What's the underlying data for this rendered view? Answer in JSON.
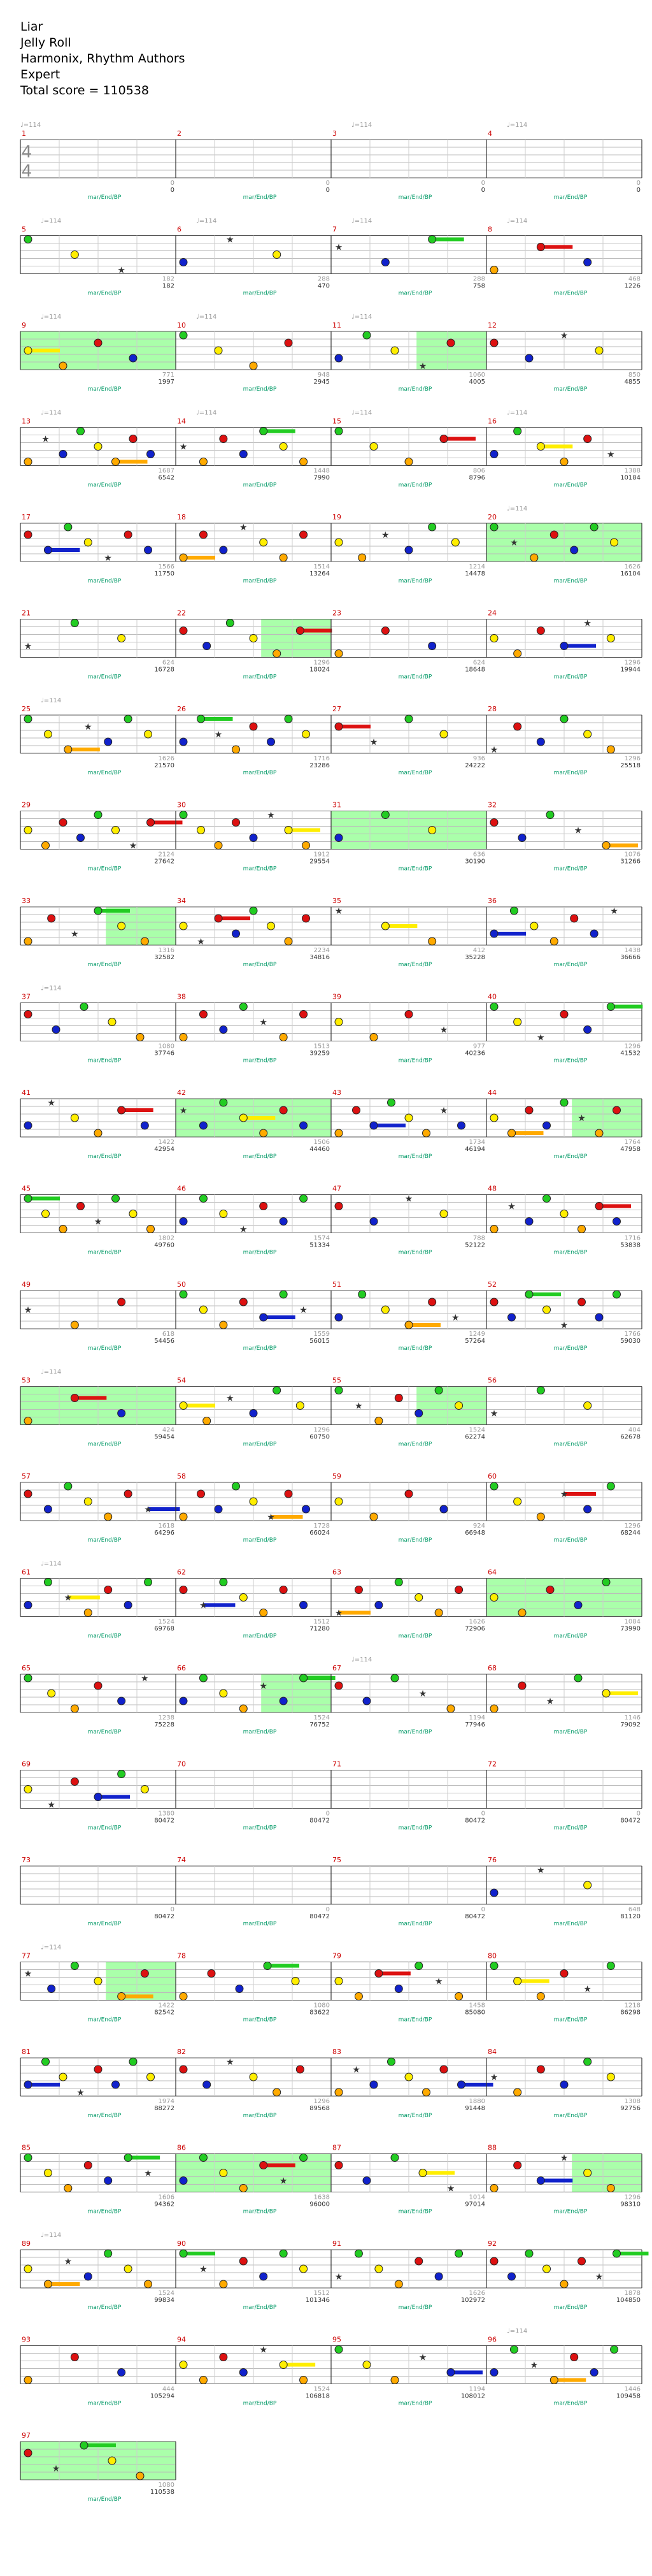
{
  "song": {
    "title": "Liar",
    "artist": "Jelly Roll",
    "charter": "Harmonix, Rhythm Authors",
    "difficulty": "Expert",
    "total_score_text": "Total score = 110538"
  },
  "time_signature": "4/4",
  "tempo_label": "♩=114",
  "label_sub": "mar/End/BP",
  "colors": {
    "green": "#22cc22",
    "red": "#dd1111",
    "yellow": "#ffee00",
    "blue": "#1122cc",
    "orange": "#ffaa00",
    "star_power": "#aaffaa",
    "measure_number": "#cc0000",
    "score": "#009966",
    "tempo": "#999999"
  },
  "icons": {
    "note": "note-gem-icon",
    "star_note": "star-note-icon"
  },
  "measures": [
    {
      "n": 1,
      "score": 0,
      "notes": 0
    },
    {
      "n": 2,
      "score": 0,
      "notes": 0
    },
    {
      "n": 3,
      "score": 0,
      "notes": 0
    },
    {
      "n": 4,
      "score": 0,
      "notes": 0
    },
    {
      "n": 5,
      "score": 182,
      "notes": 182
    },
    {
      "n": 6,
      "score": 470,
      "notes": 288
    },
    {
      "n": 7,
      "score": 758,
      "notes": 288
    },
    {
      "n": 8,
      "score": 1226,
      "notes": 468
    },
    {
      "n": 9,
      "score": 1997,
      "notes": 771
    },
    {
      "n": 10,
      "score": 2945,
      "notes": 948
    },
    {
      "n": 11,
      "score": 4005,
      "notes": 1060
    },
    {
      "n": 12,
      "score": 4855,
      "notes": 850
    },
    {
      "n": 13,
      "score": 6542,
      "notes": 1687
    },
    {
      "n": 14,
      "score": 7990,
      "notes": 1448
    },
    {
      "n": 15,
      "score": 8796,
      "notes": 806
    },
    {
      "n": 16,
      "score": 10184,
      "notes": 1388
    },
    {
      "n": 17,
      "score": 11750,
      "notes": 1566
    },
    {
      "n": 18,
      "score": 13264,
      "notes": 1514
    },
    {
      "n": 19,
      "score": 14478,
      "notes": 1214
    },
    {
      "n": 20,
      "score": 16104,
      "notes": 1626
    },
    {
      "n": 21,
      "score": 16728,
      "notes": 624
    },
    {
      "n": 22,
      "score": 18024,
      "notes": 1296
    },
    {
      "n": 23,
      "score": 18648,
      "notes": 624
    },
    {
      "n": 24,
      "score": 19944,
      "notes": 1296
    },
    {
      "n": 25,
      "score": 21570,
      "notes": 1626
    },
    {
      "n": 26,
      "score": 23286,
      "notes": 1716
    },
    {
      "n": 27,
      "score": 24222,
      "notes": 936
    },
    {
      "n": 28,
      "score": 25518,
      "notes": 1296
    },
    {
      "n": 29,
      "score": 27642,
      "notes": 2124
    },
    {
      "n": 30,
      "score": 29554,
      "notes": 1912
    },
    {
      "n": 31,
      "score": 30190,
      "notes": 636
    },
    {
      "n": 32,
      "score": 31266,
      "notes": 1076
    },
    {
      "n": 33,
      "score": 32582,
      "notes": 1316
    },
    {
      "n": 34,
      "score": 34816,
      "notes": 2234
    },
    {
      "n": 35,
      "score": 35228,
      "notes": 412
    },
    {
      "n": 36,
      "score": 36666,
      "notes": 1438
    },
    {
      "n": 37,
      "score": 37746,
      "notes": 1080
    },
    {
      "n": 38,
      "score": 39259,
      "notes": 1513
    },
    {
      "n": 39,
      "score": 40236,
      "notes": 977
    },
    {
      "n": 40,
      "score": 41532,
      "notes": 1296
    },
    {
      "n": 41,
      "score": 42954,
      "notes": 1422
    },
    {
      "n": 42,
      "score": 44460,
      "notes": 1506
    },
    {
      "n": 43,
      "score": 46194,
      "notes": 1734
    },
    {
      "n": 44,
      "score": 47958,
      "notes": 1764
    },
    {
      "n": 45,
      "score": 49760,
      "notes": 1802
    },
    {
      "n": 46,
      "score": 51334,
      "notes": 1574
    },
    {
      "n": 47,
      "score": 52122,
      "notes": 788
    },
    {
      "n": 48,
      "score": 53838,
      "notes": 1716
    },
    {
      "n": 49,
      "score": 54456,
      "notes": 618
    },
    {
      "n": 50,
      "score": 56015,
      "notes": 1559
    },
    {
      "n": 51,
      "score": 57264,
      "notes": 1249
    },
    {
      "n": 52,
      "score": 59030,
      "notes": 1766
    },
    {
      "n": 53,
      "score": 59454,
      "notes": 424
    },
    {
      "n": 54,
      "score": 60750,
      "notes": 1296
    },
    {
      "n": 55,
      "score": 62274,
      "notes": 1524
    },
    {
      "n": 56,
      "score": 62678,
      "notes": 404
    },
    {
      "n": 57,
      "score": 64296,
      "notes": 1618
    },
    {
      "n": 58,
      "score": 66024,
      "notes": 1728
    },
    {
      "n": 59,
      "score": 66948,
      "notes": 924
    },
    {
      "n": 60,
      "score": 68244,
      "notes": 1296
    },
    {
      "n": 61,
      "score": 69768,
      "notes": 1524
    },
    {
      "n": 62,
      "score": 71280,
      "notes": 1512
    },
    {
      "n": 63,
      "score": 72906,
      "notes": 1626
    },
    {
      "n": 64,
      "score": 73990,
      "notes": 1084
    },
    {
      "n": 65,
      "score": 75228,
      "notes": 1238
    },
    {
      "n": 66,
      "score": 76752,
      "notes": 1524
    },
    {
      "n": 67,
      "score": 77946,
      "notes": 1194
    },
    {
      "n": 68,
      "score": 79092,
      "notes": 1146
    },
    {
      "n": 69,
      "score": 80472,
      "notes": 1380
    },
    {
      "n": 70,
      "score": 80472,
      "notes": 0
    },
    {
      "n": 71,
      "score": 80472,
      "notes": 0
    },
    {
      "n": 72,
      "score": 80472,
      "notes": 0
    },
    {
      "n": 73,
      "score": 80472,
      "notes": 0
    },
    {
      "n": 74,
      "score": 80472,
      "notes": 0
    },
    {
      "n": 75,
      "score": 80472,
      "notes": 0
    },
    {
      "n": 76,
      "score": 81120,
      "notes": 648
    },
    {
      "n": 77,
      "score": 82542,
      "notes": 1422
    },
    {
      "n": 78,
      "score": 83622,
      "notes": 1080
    },
    {
      "n": 79,
      "score": 85080,
      "notes": 1458
    },
    {
      "n": 80,
      "score": 86298,
      "notes": 1218
    },
    {
      "n": 81,
      "score": 88272,
      "notes": 1974
    },
    {
      "n": 82,
      "score": 89568,
      "notes": 1296
    },
    {
      "n": 83,
      "score": 91448,
      "notes": 1880
    },
    {
      "n": 84,
      "score": 92756,
      "notes": 1308
    },
    {
      "n": 85,
      "score": 94362,
      "notes": 1606
    },
    {
      "n": 86,
      "score": 96000,
      "notes": 1638
    },
    {
      "n": 87,
      "score": 97014,
      "notes": 1014
    },
    {
      "n": 88,
      "score": 98310,
      "notes": 1296
    },
    {
      "n": 89,
      "score": 99834,
      "notes": 1524
    },
    {
      "n": 90,
      "score": 101346,
      "notes": 1512
    },
    {
      "n": 91,
      "score": 102972,
      "notes": 1626
    },
    {
      "n": 92,
      "score": 104850,
      "notes": 1878
    },
    {
      "n": 93,
      "score": 105294,
      "notes": 444
    },
    {
      "n": 94,
      "score": 106818,
      "notes": 1524
    },
    {
      "n": 95,
      "score": 108012,
      "notes": 1194
    },
    {
      "n": 96,
      "score": 109458,
      "notes": 1446
    },
    {
      "n": 97,
      "score": 110538,
      "notes": 1080
    }
  ],
  "tempo_marks": [
    1,
    3,
    4,
    5,
    6,
    7,
    8,
    9,
    10,
    11,
    13,
    14,
    15,
    16,
    20,
    25,
    37,
    53,
    61,
    67,
    77,
    89,
    96
  ]
}
